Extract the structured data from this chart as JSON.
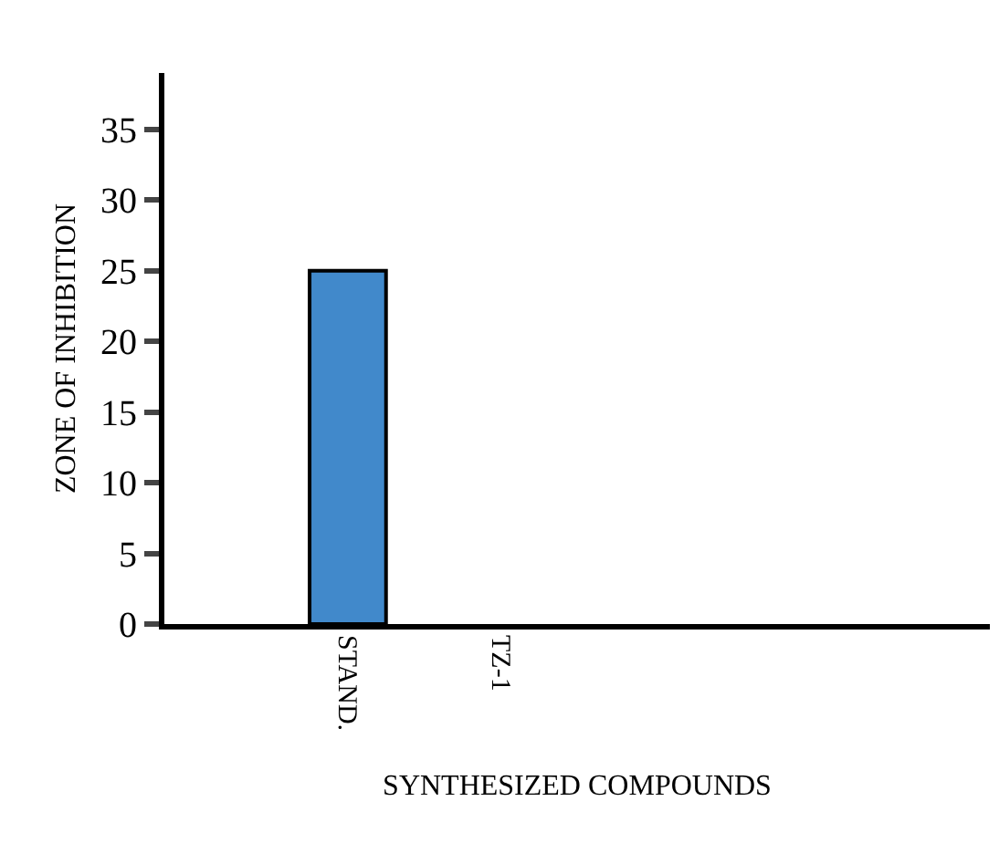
{
  "chart_data": {
    "type": "bar",
    "xlabel": "SYNTHESIZED COMPOUNDS",
    "ylabel": "ZONE OF INHIBITION",
    "categories": [
      "STAND.",
      "TZ-1"
    ],
    "values": [
      25,
      null
    ],
    "color": "#4189cb",
    "ylim": [
      0,
      39
    ],
    "yticks": [
      0,
      5,
      10,
      15,
      20,
      25,
      30,
      35
    ]
  }
}
